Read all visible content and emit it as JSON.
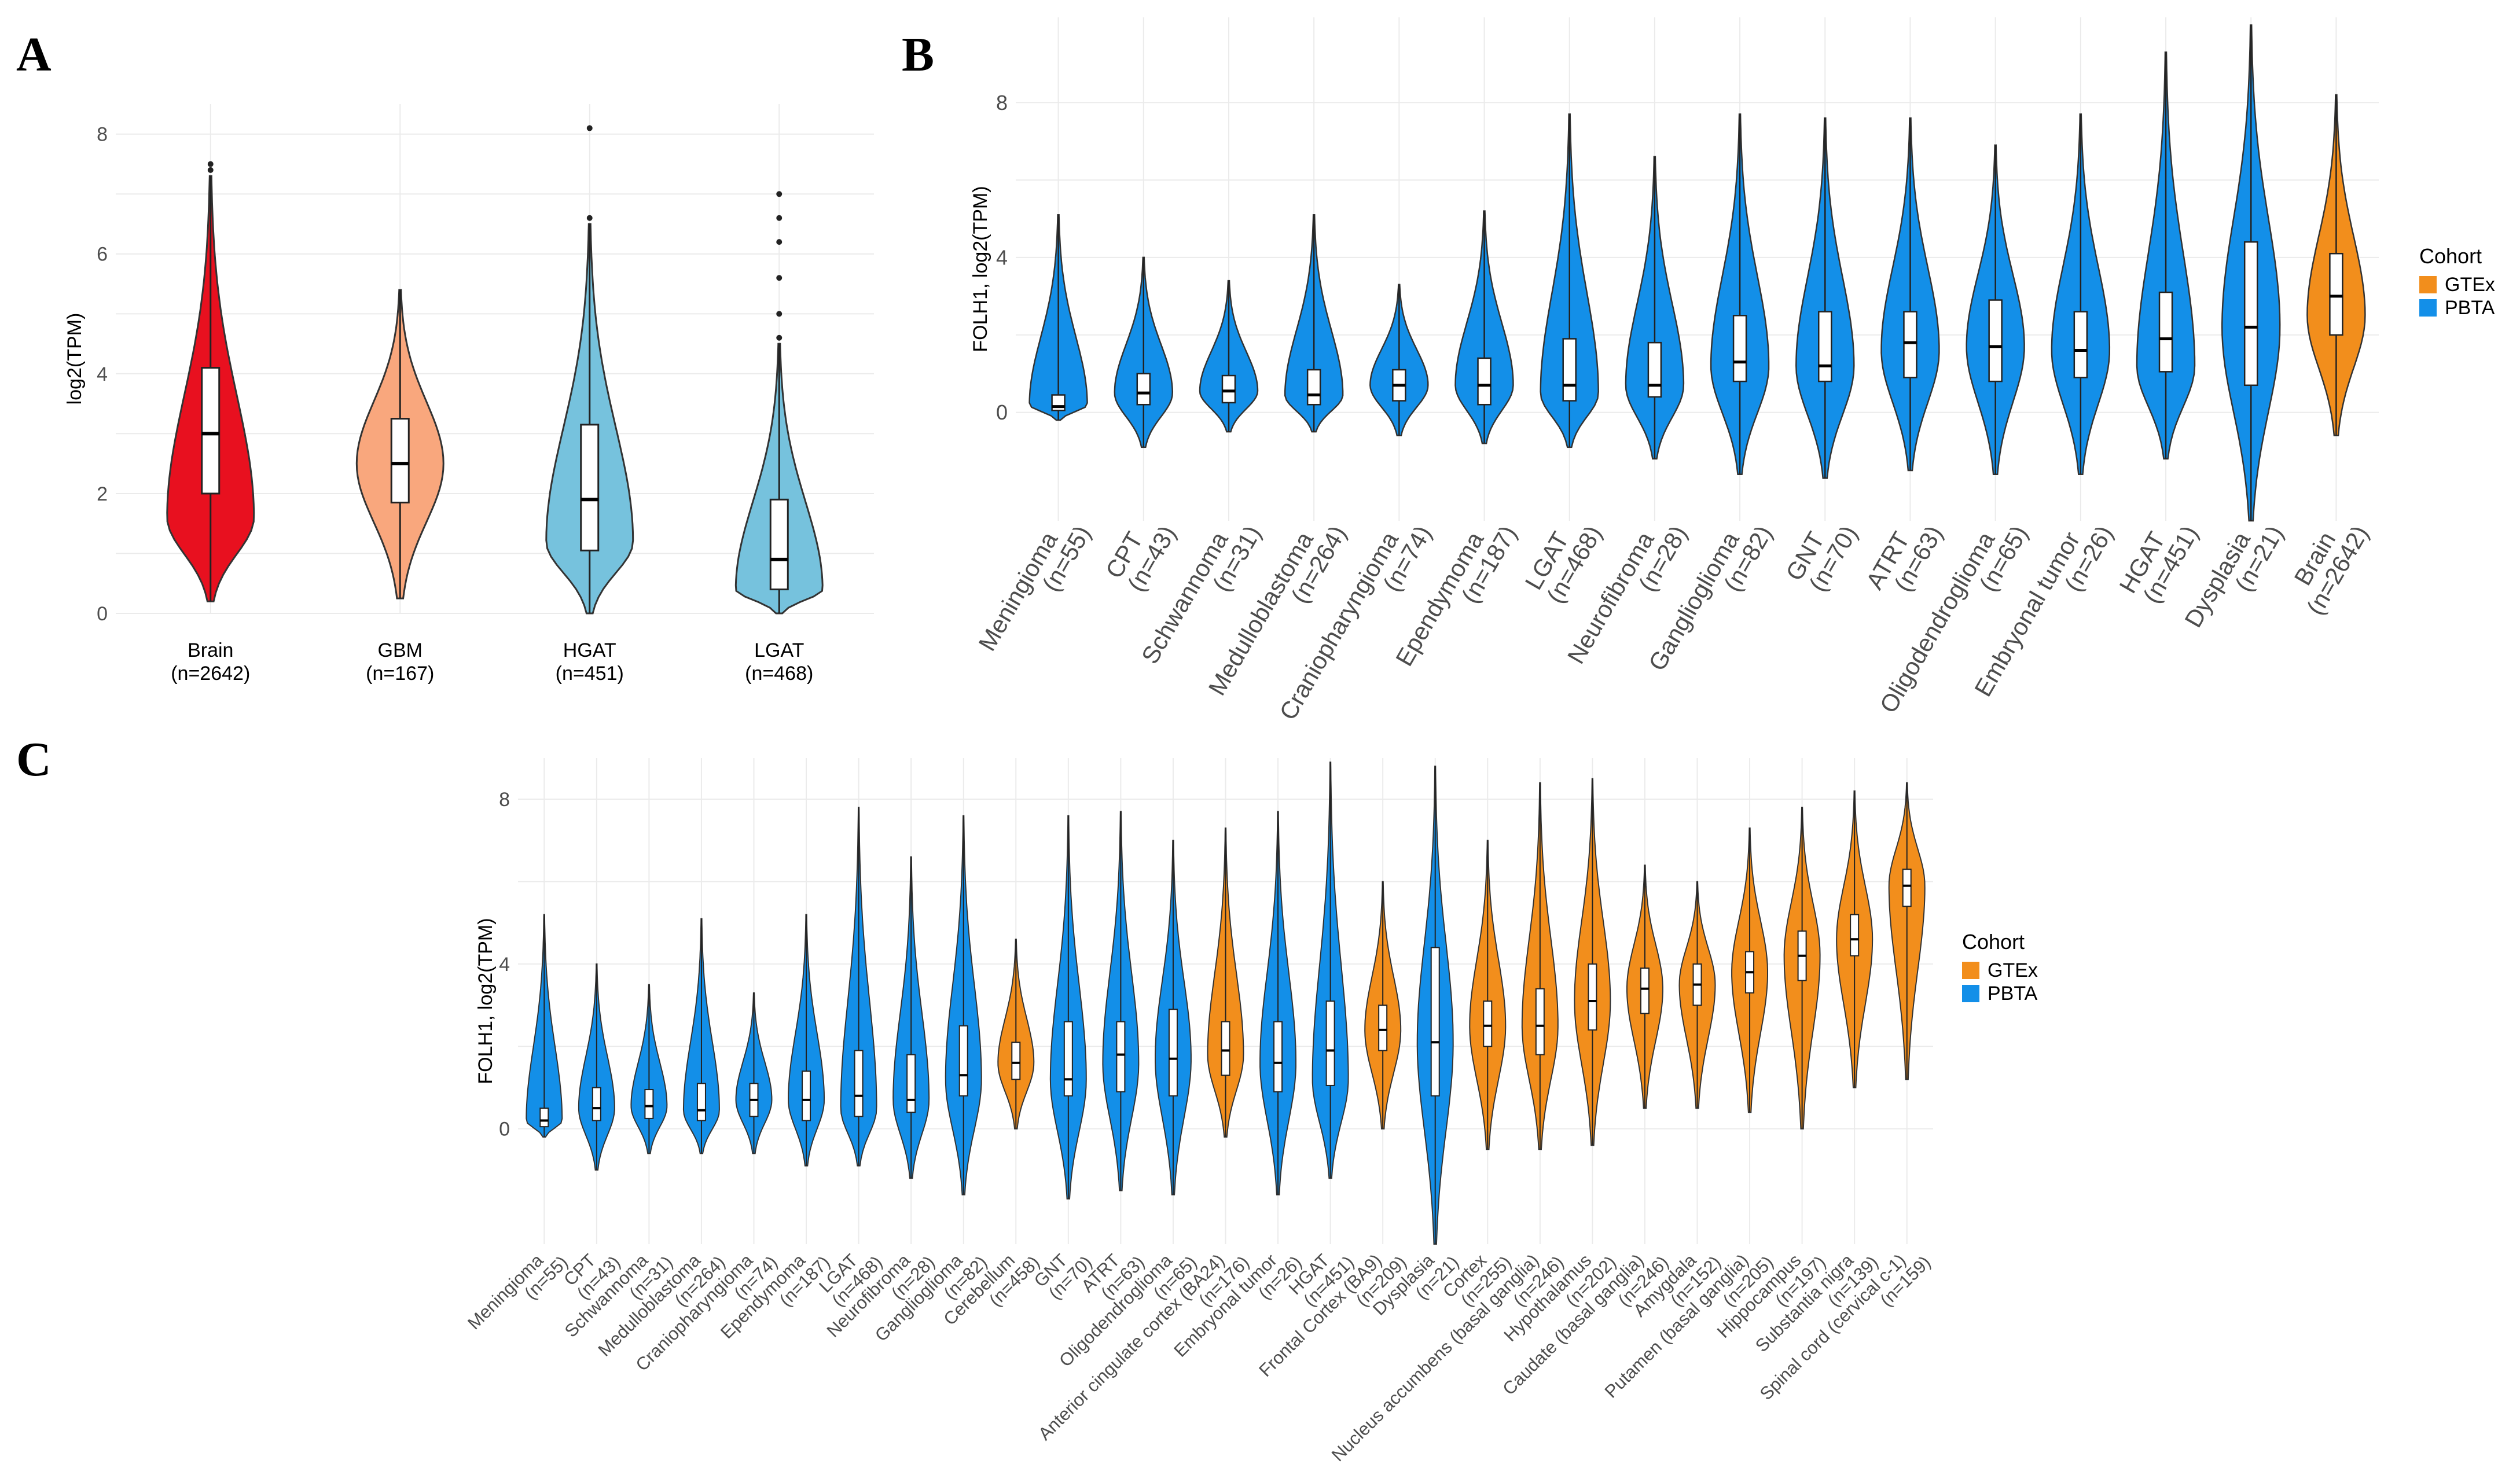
{
  "colors": {
    "Brain": "#e8101f",
    "GBM": "#f9a77d",
    "HGAT": "#76c2dd",
    "LGAT": "#76c2dd",
    "GTEx": "#f28e1c",
    "PBTA": "#138fe8",
    "grid": "#ebebeb"
  },
  "chart_data": [
    {
      "panel": "A",
      "type": "violin",
      "ylabel": "log2(TPM)",
      "ylim": [
        0,
        8.5
      ],
      "yticks": [
        0,
        2,
        4,
        6,
        8
      ],
      "legend": null,
      "groups": [
        {
          "name": "Brain",
          "n": "(n=2642)",
          "median": 3.0,
          "q1": 2.0,
          "q3": 4.1,
          "min": 0.2,
          "max": 7.3,
          "peak": 1.6,
          "outliers": [
            7.4,
            7.5
          ],
          "color_key": "Brain"
        },
        {
          "name": "GBM",
          "n": "(n=167)",
          "median": 2.5,
          "q1": 1.85,
          "q3": 3.25,
          "min": 0.25,
          "max": 5.4,
          "peak": 2.5,
          "outliers": [],
          "color_key": "GBM"
        },
        {
          "name": "HGAT",
          "n": "(n=451)",
          "median": 1.9,
          "q1": 1.05,
          "q3": 3.15,
          "min": 0.0,
          "max": 6.5,
          "peak": 1.2,
          "outliers": [
            6.6,
            8.1
          ],
          "color_key": "HGAT"
        },
        {
          "name": "LGAT",
          "n": "(n=468)",
          "median": 0.9,
          "q1": 0.4,
          "q3": 1.9,
          "min": 0.0,
          "max": 4.5,
          "peak": 0.4,
          "outliers": [
            4.6,
            5.0,
            5.6,
            6.2,
            6.6,
            7.0
          ],
          "color_key": "LGAT"
        }
      ]
    },
    {
      "panel": "B",
      "type": "violin",
      "ylabel": "FOLH1, log2(TPM)",
      "ylim": [
        -2.8,
        10.2
      ],
      "yticks": [
        0,
        4,
        8
      ],
      "legend": {
        "title": "Cohort",
        "items": [
          "GTEx",
          "PBTA"
        ],
        "placement": "right"
      },
      "groups": [
        {
          "name": "Meningioma",
          "n": "(n=55)",
          "cohort": "PBTA",
          "median": 0.15,
          "q1": 0.05,
          "q3": 0.45,
          "min": -0.2,
          "max": 5.1,
          "peak": 0.2
        },
        {
          "name": "CPT",
          "n": "(n=43)",
          "cohort": "PBTA",
          "median": 0.5,
          "q1": 0.2,
          "q3": 1.0,
          "min": -0.9,
          "max": 4.0,
          "peak": 0.5
        },
        {
          "name": "Schwannoma",
          "n": "(n=31)",
          "cohort": "PBTA",
          "median": 0.55,
          "q1": 0.25,
          "q3": 0.95,
          "min": -0.5,
          "max": 3.4,
          "peak": 0.55
        },
        {
          "name": "Medulloblastoma",
          "n": "(n=264)",
          "cohort": "PBTA",
          "median": 0.45,
          "q1": 0.2,
          "q3": 1.1,
          "min": -0.5,
          "max": 5.1,
          "peak": 0.45
        },
        {
          "name": "Craniopharyngioma",
          "n": "(n=74)",
          "cohort": "PBTA",
          "median": 0.7,
          "q1": 0.3,
          "q3": 1.1,
          "min": -0.6,
          "max": 3.3,
          "peak": 0.7
        },
        {
          "name": "Ependymoma",
          "n": "(n=187)",
          "cohort": "PBTA",
          "median": 0.7,
          "q1": 0.2,
          "q3": 1.4,
          "min": -0.8,
          "max": 5.2,
          "peak": 0.7
        },
        {
          "name": "LGAT",
          "n": "(n=468)",
          "cohort": "PBTA",
          "median": 0.7,
          "q1": 0.3,
          "q3": 1.9,
          "min": -0.9,
          "max": 7.7,
          "peak": 0.5
        },
        {
          "name": "Neurofibroma",
          "n": "(n=28)",
          "cohort": "PBTA",
          "median": 0.7,
          "q1": 0.4,
          "q3": 1.8,
          "min": -1.2,
          "max": 6.6,
          "peak": 0.7
        },
        {
          "name": "Ganglioglioma",
          "n": "(n=82)",
          "cohort": "PBTA",
          "median": 1.3,
          "q1": 0.8,
          "q3": 2.5,
          "min": -1.6,
          "max": 7.7,
          "peak": 1.2
        },
        {
          "name": "GNT",
          "n": "(n=70)",
          "cohort": "PBTA",
          "median": 1.2,
          "q1": 0.8,
          "q3": 2.6,
          "min": -1.7,
          "max": 7.6,
          "peak": 1.2
        },
        {
          "name": "ATRT",
          "n": "(n=63)",
          "cohort": "PBTA",
          "median": 1.8,
          "q1": 0.9,
          "q3": 2.6,
          "min": -1.5,
          "max": 7.6,
          "peak": 1.6
        },
        {
          "name": "Oligodendroglioma",
          "n": "(n=65)",
          "cohort": "PBTA",
          "median": 1.7,
          "q1": 0.8,
          "q3": 2.9,
          "min": -1.6,
          "max": 6.9,
          "peak": 1.7
        },
        {
          "name": "Embryonal tumor",
          "n": "(n=26)",
          "cohort": "PBTA",
          "median": 1.6,
          "q1": 0.9,
          "q3": 2.6,
          "min": -1.6,
          "max": 7.7,
          "peak": 1.6
        },
        {
          "name": "HGAT",
          "n": "(n=451)",
          "cohort": "PBTA",
          "median": 1.9,
          "q1": 1.05,
          "q3": 3.1,
          "min": -1.2,
          "max": 9.3,
          "peak": 1.2
        },
        {
          "name": "Dysplasia",
          "n": "(n=21)",
          "cohort": "PBTA",
          "median": 2.2,
          "q1": 0.7,
          "q3": 4.4,
          "min": -2.8,
          "max": 10.0,
          "peak": 2.2
        },
        {
          "name": "Brain",
          "n": "(n=2642)",
          "cohort": "GTEx",
          "median": 3.0,
          "q1": 2.0,
          "q3": 4.1,
          "min": -0.6,
          "max": 8.2,
          "peak": 2.5
        }
      ]
    },
    {
      "panel": "C",
      "type": "violin",
      "ylabel": "FOLH1, log2(TPM)",
      "ylim": [
        -2.8,
        9.0
      ],
      "yticks": [
        0,
        4,
        8
      ],
      "legend": {
        "title": "Cohort",
        "items": [
          "GTEx",
          "PBTA"
        ],
        "placement": "right"
      },
      "groups": [
        {
          "name": "Meningioma",
          "n": "(n=55)",
          "cohort": "PBTA",
          "median": 0.2,
          "q1": 0.05,
          "q3": 0.5,
          "min": -0.2,
          "max": 5.2,
          "peak": 0.2
        },
        {
          "name": "CPT",
          "n": "(n=43)",
          "cohort": "PBTA",
          "median": 0.5,
          "q1": 0.2,
          "q3": 1.0,
          "min": -1.0,
          "max": 4.0,
          "peak": 0.5
        },
        {
          "name": "Schwannoma",
          "n": "(n=31)",
          "cohort": "PBTA",
          "median": 0.55,
          "q1": 0.25,
          "q3": 0.95,
          "min": -0.6,
          "max": 3.5,
          "peak": 0.55
        },
        {
          "name": "Medulloblastoma",
          "n": "(n=264)",
          "cohort": "PBTA",
          "median": 0.45,
          "q1": 0.2,
          "q3": 1.1,
          "min": -0.6,
          "max": 5.1,
          "peak": 0.45
        },
        {
          "name": "Craniopharyngioma",
          "n": "(n=74)",
          "cohort": "PBTA",
          "median": 0.7,
          "q1": 0.3,
          "q3": 1.1,
          "min": -0.6,
          "max": 3.3,
          "peak": 0.7
        },
        {
          "name": "Ependymoma",
          "n": "(n=187)",
          "cohort": "PBTA",
          "median": 0.7,
          "q1": 0.2,
          "q3": 1.4,
          "min": -0.9,
          "max": 5.2,
          "peak": 0.7
        },
        {
          "name": "LGAT",
          "n": "(n=468)",
          "cohort": "PBTA",
          "median": 0.8,
          "q1": 0.3,
          "q3": 1.9,
          "min": -0.9,
          "max": 7.8,
          "peak": 0.5
        },
        {
          "name": "Neurofibroma",
          "n": "(n=28)",
          "cohort": "PBTA",
          "median": 0.7,
          "q1": 0.4,
          "q3": 1.8,
          "min": -1.2,
          "max": 6.6,
          "peak": 0.7
        },
        {
          "name": "Ganglioglioma",
          "n": "(n=82)",
          "cohort": "PBTA",
          "median": 1.3,
          "q1": 0.8,
          "q3": 2.5,
          "min": -1.6,
          "max": 7.6,
          "peak": 1.2
        },
        {
          "name": "Cerebellum",
          "n": "(n=458)",
          "cohort": "GTEx",
          "median": 1.6,
          "q1": 1.2,
          "q3": 2.1,
          "min": 0.0,
          "max": 4.6,
          "peak": 1.6
        },
        {
          "name": "GNT",
          "n": "(n=70)",
          "cohort": "PBTA",
          "median": 1.2,
          "q1": 0.8,
          "q3": 2.6,
          "min": -1.7,
          "max": 7.6,
          "peak": 1.2
        },
        {
          "name": "ATRT",
          "n": "(n=63)",
          "cohort": "PBTA",
          "median": 1.8,
          "q1": 0.9,
          "q3": 2.6,
          "min": -1.5,
          "max": 7.7,
          "peak": 1.6
        },
        {
          "name": "Oligodendroglioma",
          "n": "(n=65)",
          "cohort": "PBTA",
          "median": 1.7,
          "q1": 0.8,
          "q3": 2.9,
          "min": -1.6,
          "max": 7.0,
          "peak": 1.7
        },
        {
          "name": "Anterior cingulate cortex (BA24)",
          "n": "(n=176)",
          "cohort": "GTEx",
          "median": 1.9,
          "q1": 1.3,
          "q3": 2.6,
          "min": -0.2,
          "max": 7.3,
          "peak": 1.8
        },
        {
          "name": "Embryonal tumor",
          "n": "(n=26)",
          "cohort": "PBTA",
          "median": 1.6,
          "q1": 0.9,
          "q3": 2.6,
          "min": -1.6,
          "max": 7.7,
          "peak": 1.6
        },
        {
          "name": "HGAT",
          "n": "(n=451)",
          "cohort": "PBTA",
          "median": 1.9,
          "q1": 1.05,
          "q3": 3.1,
          "min": -1.2,
          "max": 8.9,
          "peak": 1.2
        },
        {
          "name": "Frontal Cortex (BA9)",
          "n": "(n=209)",
          "cohort": "GTEx",
          "median": 2.4,
          "q1": 1.9,
          "q3": 3.0,
          "min": 0.0,
          "max": 6.0,
          "peak": 2.4
        },
        {
          "name": "Dysplasia",
          "n": "(n=21)",
          "cohort": "PBTA",
          "median": 2.1,
          "q1": 0.8,
          "q3": 4.4,
          "min": -2.8,
          "max": 8.8,
          "peak": 2.1
        },
        {
          "name": "Cortex",
          "n": "(n=255)",
          "cohort": "GTEx",
          "median": 2.5,
          "q1": 2.0,
          "q3": 3.1,
          "min": -0.5,
          "max": 7.0,
          "peak": 2.5
        },
        {
          "name": "Nucleus accumbens (basal ganglia)",
          "n": "(n=246)",
          "cohort": "GTEx",
          "median": 2.5,
          "q1": 1.8,
          "q3": 3.4,
          "min": -0.5,
          "max": 8.4,
          "peak": 2.5
        },
        {
          "name": "Hypothalamus",
          "n": "(n=202)",
          "cohort": "GTEx",
          "median": 3.1,
          "q1": 2.4,
          "q3": 4.0,
          "min": -0.4,
          "max": 8.5,
          "peak": 3.1
        },
        {
          "name": "Caudate (basal ganglia)",
          "n": "(n=246)",
          "cohort": "GTEx",
          "median": 3.4,
          "q1": 2.8,
          "q3": 3.9,
          "min": 0.5,
          "max": 6.4,
          "peak": 3.4
        },
        {
          "name": "Amygdala",
          "n": "(n=152)",
          "cohort": "GTEx",
          "median": 3.5,
          "q1": 3.0,
          "q3": 4.0,
          "min": 0.5,
          "max": 6.0,
          "peak": 3.5
        },
        {
          "name": "Putamen (basal ganglia)",
          "n": "(n=205)",
          "cohort": "GTEx",
          "median": 3.8,
          "q1": 3.3,
          "q3": 4.3,
          "min": 0.4,
          "max": 7.3,
          "peak": 3.8
        },
        {
          "name": "Hippocampus",
          "n": "(n=197)",
          "cohort": "GTEx",
          "median": 4.2,
          "q1": 3.6,
          "q3": 4.8,
          "min": 0.0,
          "max": 7.8,
          "peak": 4.2
        },
        {
          "name": "Substantia nigra",
          "n": "(n=139)",
          "cohort": "GTEx",
          "median": 4.6,
          "q1": 4.2,
          "q3": 5.2,
          "min": 1.0,
          "max": 8.2,
          "peak": 4.6
        },
        {
          "name": "Spinal cord (cervical c-1)",
          "n": "(n=159)",
          "cohort": "GTEx",
          "median": 5.9,
          "q1": 5.4,
          "q3": 6.3,
          "min": 1.2,
          "max": 8.4,
          "peak": 5.9
        }
      ]
    }
  ],
  "panel_labels": {
    "A": "A",
    "B": "B",
    "C": "C"
  }
}
